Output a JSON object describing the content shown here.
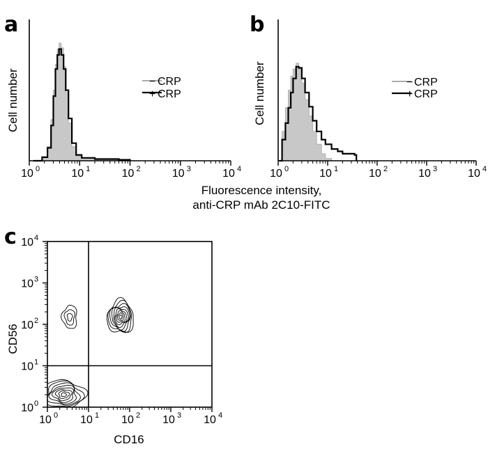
{
  "chart_data": [
    {
      "panel": "a",
      "type": "histogram",
      "ylabel": "Cell number",
      "x_scale": "log",
      "xlim": [
        1,
        10000
      ],
      "x_ticks": [
        {
          "base": "10",
          "exp": "0"
        },
        {
          "base": "10",
          "exp": "1"
        },
        {
          "base": "10",
          "exp": "2"
        },
        {
          "base": "10",
          "exp": "3"
        },
        {
          "base": "10",
          "exp": "4"
        }
      ],
      "legend": {
        "placement": "top-right",
        "entries": [
          {
            "sign": "−",
            "text": "CRP"
          },
          {
            "sign": "+",
            "text": "CRP"
          }
        ]
      },
      "series": [
        {
          "name": "−CRP",
          "style": "filled",
          "color": "#c8c8c8",
          "points": [
            [
              1.2,
              0
            ],
            [
              1.8,
              0.03
            ],
            [
              2.3,
              0.12
            ],
            [
              2.7,
              0.35
            ],
            [
              3.0,
              0.6
            ],
            [
              3.3,
              0.82
            ],
            [
              3.6,
              0.95
            ],
            [
              3.9,
              1.0
            ],
            [
              4.3,
              0.96
            ],
            [
              4.8,
              0.8
            ],
            [
              5.3,
              0.58
            ],
            [
              6.0,
              0.32
            ],
            [
              7.0,
              0.12
            ],
            [
              8.5,
              0.04
            ],
            [
              11,
              0.02
            ],
            [
              20,
              0.01
            ],
            [
              60,
              0.005
            ],
            [
              100,
              0
            ]
          ]
        },
        {
          "name": "+CRP",
          "style": "outline",
          "color": "#000000",
          "points": [
            [
              1.2,
              0
            ],
            [
              1.8,
              0.03
            ],
            [
              2.3,
              0.11
            ],
            [
              2.7,
              0.3
            ],
            [
              3.0,
              0.55
            ],
            [
              3.3,
              0.78
            ],
            [
              3.6,
              0.9
            ],
            [
              3.9,
              0.95
            ],
            [
              4.3,
              0.9
            ],
            [
              4.8,
              0.78
            ],
            [
              5.3,
              0.6
            ],
            [
              6.0,
              0.36
            ],
            [
              7.0,
              0.15
            ],
            [
              8.5,
              0.05
            ],
            [
              11,
              0.025
            ],
            [
              20,
              0.015
            ],
            [
              60,
              0.008
            ],
            [
              100,
              0
            ]
          ]
        }
      ]
    },
    {
      "panel": "b",
      "type": "histogram",
      "ylabel": "Cell number",
      "x_scale": "log",
      "xlim": [
        1,
        10000
      ],
      "x_ticks": [
        {
          "base": "10",
          "exp": "0"
        },
        {
          "base": "10",
          "exp": "1"
        },
        {
          "base": "10",
          "exp": "2"
        },
        {
          "base": "10",
          "exp": "3"
        },
        {
          "base": "10",
          "exp": "4"
        }
      ],
      "legend": {
        "placement": "top-right",
        "entries": [
          {
            "sign": "−",
            "text": "CRP"
          },
          {
            "sign": "+",
            "text": "CRP"
          }
        ]
      },
      "series": [
        {
          "name": "−CRP",
          "style": "filled",
          "color": "#c8c8c8",
          "points": [
            [
              1.05,
              0
            ],
            [
              1.2,
              0.25
            ],
            [
              1.4,
              0.45
            ],
            [
              1.6,
              0.6
            ],
            [
              1.8,
              0.72
            ],
            [
              2.0,
              0.78
            ],
            [
              2.3,
              0.83
            ],
            [
              2.6,
              0.78
            ],
            [
              3.0,
              0.66
            ],
            [
              3.5,
              0.52
            ],
            [
              4.2,
              0.38
            ],
            [
              5.0,
              0.25
            ],
            [
              6.0,
              0.14
            ],
            [
              7.5,
              0.06
            ],
            [
              9,
              0.02
            ],
            [
              12,
              0
            ]
          ]
        },
        {
          "name": "+CRP",
          "style": "outline",
          "color": "#000000",
          "points": [
            [
              1.05,
              0
            ],
            [
              1.2,
              0.18
            ],
            [
              1.4,
              0.32
            ],
            [
              1.6,
              0.45
            ],
            [
              1.8,
              0.58
            ],
            [
              2.0,
              0.7
            ],
            [
              2.3,
              0.8
            ],
            [
              2.6,
              0.79
            ],
            [
              3.0,
              0.7
            ],
            [
              3.5,
              0.58
            ],
            [
              4.2,
              0.46
            ],
            [
              5.0,
              0.34
            ],
            [
              6.0,
              0.25
            ],
            [
              7.5,
              0.18
            ],
            [
              9,
              0.14
            ],
            [
              12,
              0.1
            ],
            [
              16,
              0.08
            ],
            [
              20,
              0.06
            ],
            [
              27,
              0.06
            ],
            [
              35,
              0.05
            ],
            [
              38,
              0
            ]
          ]
        }
      ]
    },
    {
      "panel": "c",
      "type": "contour",
      "xlabel": "CD16",
      "ylabel": "CD56",
      "x_scale": "log",
      "y_scale": "log",
      "xlim": [
        1,
        10000
      ],
      "ylim": [
        1,
        10000
      ],
      "quadrant_gates": {
        "x": 10,
        "y": 10
      },
      "x_ticks": [
        {
          "base": "10",
          "exp": "0"
        },
        {
          "base": "10",
          "exp": "1"
        },
        {
          "base": "10",
          "exp": "2"
        },
        {
          "base": "10",
          "exp": "3"
        },
        {
          "base": "10",
          "exp": "4"
        }
      ],
      "y_ticks": [
        {
          "base": "10",
          "exp": "0"
        },
        {
          "base": "10",
          "exp": "1"
        },
        {
          "base": "10",
          "exp": "2"
        },
        {
          "base": "10",
          "exp": "3"
        },
        {
          "base": "10",
          "exp": "4"
        }
      ],
      "populations": [
        {
          "name": "double-negative",
          "center": [
            2.5,
            2
          ],
          "spread": [
            0.5,
            0.35
          ],
          "levels": 8
        },
        {
          "name": "CD56+CD16-",
          "center": [
            3.5,
            150
          ],
          "spread": [
            0.18,
            0.28
          ],
          "levels": 3
        },
        {
          "name": "CD56+CD16+",
          "center": [
            60,
            150
          ],
          "spread": [
            0.32,
            0.4
          ],
          "levels": 9
        }
      ]
    }
  ],
  "shared_xlabel": {
    "line1": "Fluorescence intensity,",
    "line2": "anti-CRP mAb 2C10-FITC"
  }
}
